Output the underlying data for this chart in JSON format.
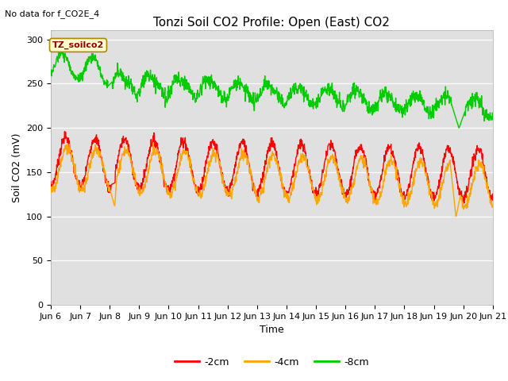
{
  "title": "Tonzi Soil CO2 Profile: Open (East) CO2",
  "subtitle": "No data for f_CO2E_4",
  "ylabel": "Soil CO2 (mV)",
  "xlabel": "Time",
  "ylim": [
    0,
    310
  ],
  "yticks": [
    0,
    50,
    100,
    150,
    200,
    250,
    300
  ],
  "legend_labels": [
    "-2cm",
    "-4cm",
    "-8cm"
  ],
  "legend_colors": [
    "#ff0000",
    "#ffa500",
    "#00cc00"
  ],
  "plot_bg_color": "#e0e0e0",
  "fig_bg_color": "#ffffff",
  "box_label": "TZ_soilco2",
  "box_color": "#ffffcc",
  "box_edge_color": "#aa8800",
  "x_start": 6.0,
  "x_end": 21.0,
  "xtick_positions": [
    6,
    7,
    8,
    9,
    10,
    11,
    12,
    13,
    14,
    15,
    16,
    17,
    18,
    19,
    20,
    21
  ],
  "xtick_labels": [
    "Jun 6",
    "Jun 7",
    "Jun 8",
    "Jun 9",
    "Jun 10",
    "Jun 11",
    "Jun 12",
    "Jun 13",
    "Jun 14",
    "Jun 15",
    "Jun 16",
    "Jun 17",
    "Jun 18",
    "Jun 19",
    "Jun 20",
    "Jun 21"
  ],
  "line_width": 1.0,
  "title_fontsize": 11,
  "axis_label_fontsize": 9,
  "tick_fontsize": 8,
  "legend_fontsize": 9
}
